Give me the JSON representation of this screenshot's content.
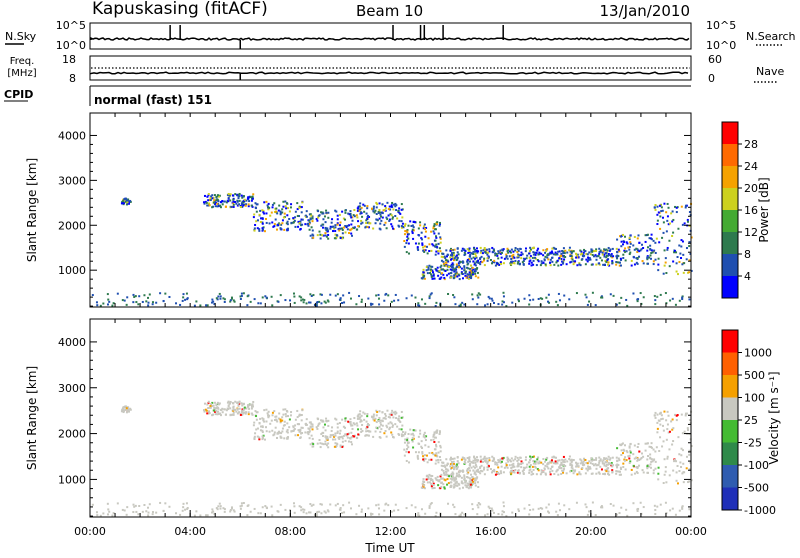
{
  "header": {
    "station": "Kapuskasing (fitACF)",
    "beam": "Beam 10",
    "date": "13/Jan/2010"
  },
  "panels": {
    "nsky": {
      "label": "N.Sky",
      "tick_top": "10^5",
      "tick_bottom": "10^0"
    },
    "nsearch": {
      "label": "N.Search",
      "tick_top": "10^5",
      "tick_bottom": "10^0"
    },
    "freq": {
      "label_line1": "Freq.",
      "label_line2": "[MHz]",
      "tick_top": "18",
      "tick_bottom": "8"
    },
    "nave": {
      "label": "Nave",
      "tick_top": "60",
      "tick_bottom": "0"
    },
    "cpid": {
      "label": "CPID",
      "text": "normal (fast) 151"
    }
  },
  "chart_data": [
    {
      "type": "heatmap",
      "name": "power",
      "ylabel": "Slant Range [km]",
      "ylim": [
        180,
        4500
      ],
      "yticks": [
        "1000",
        "2000",
        "3000",
        "4000"
      ],
      "xlim": [
        0,
        24
      ],
      "colorbar": {
        "label": "Power [dB]",
        "ticks": [
          "4",
          "8",
          "12",
          "16",
          "20",
          "24",
          "28"
        ],
        "colors": [
          "#0000ff",
          "#1f4fb0",
          "#2e7a4e",
          "#44aa33",
          "#ccd11f",
          "#f5a200",
          "#ff6a00",
          "#ff0000"
        ]
      },
      "echo_bands": [
        {
          "t": [
            1.2,
            1.6
          ],
          "range": [
            2450,
            2600
          ]
        },
        {
          "t": [
            4.5,
            6.5
          ],
          "range": [
            2400,
            2700
          ]
        },
        {
          "t": [
            6.5,
            8.5
          ],
          "range": [
            1850,
            2550
          ]
        },
        {
          "t": [
            8.5,
            10.5
          ],
          "range": [
            1700,
            2350
          ]
        },
        {
          "t": [
            10.5,
            12.5
          ],
          "range": [
            1900,
            2500
          ]
        },
        {
          "t": [
            12.5,
            14.0
          ],
          "range": [
            1300,
            2100
          ]
        },
        {
          "t": [
            14.0,
            21.0
          ],
          "range": [
            1100,
            1500
          ]
        },
        {
          "t": [
            13.2,
            15.5
          ],
          "range": [
            800,
            1100
          ]
        },
        {
          "t": [
            21.0,
            22.5
          ],
          "range": [
            1100,
            1800
          ]
        },
        {
          "t": [
            22.5,
            24.0
          ],
          "range": [
            900,
            2500
          ]
        }
      ]
    },
    {
      "type": "heatmap",
      "name": "velocity",
      "ylabel": "Slant Range [km]",
      "xlabel": "Time UT",
      "ylim": [
        180,
        4500
      ],
      "yticks": [
        "1000",
        "2000",
        "3000",
        "4000"
      ],
      "xlim": [
        0,
        24
      ],
      "xticks": [
        "00:00",
        "04:00",
        "08:00",
        "12:00",
        "16:00",
        "20:00",
        "00:00"
      ],
      "colorbar": {
        "label": "Velocity [m s⁻¹]",
        "ticks": [
          "1000",
          "500",
          "100",
          "25",
          "-25",
          "-100",
          "-500",
          "-1000"
        ],
        "colors": [
          "#1f2fb8",
          "#2f5cb0",
          "#2f8a4a",
          "#44bb33",
          "#c8c8c0",
          "#f5a000",
          "#ff6000",
          "#ff0000"
        ]
      }
    }
  ]
}
